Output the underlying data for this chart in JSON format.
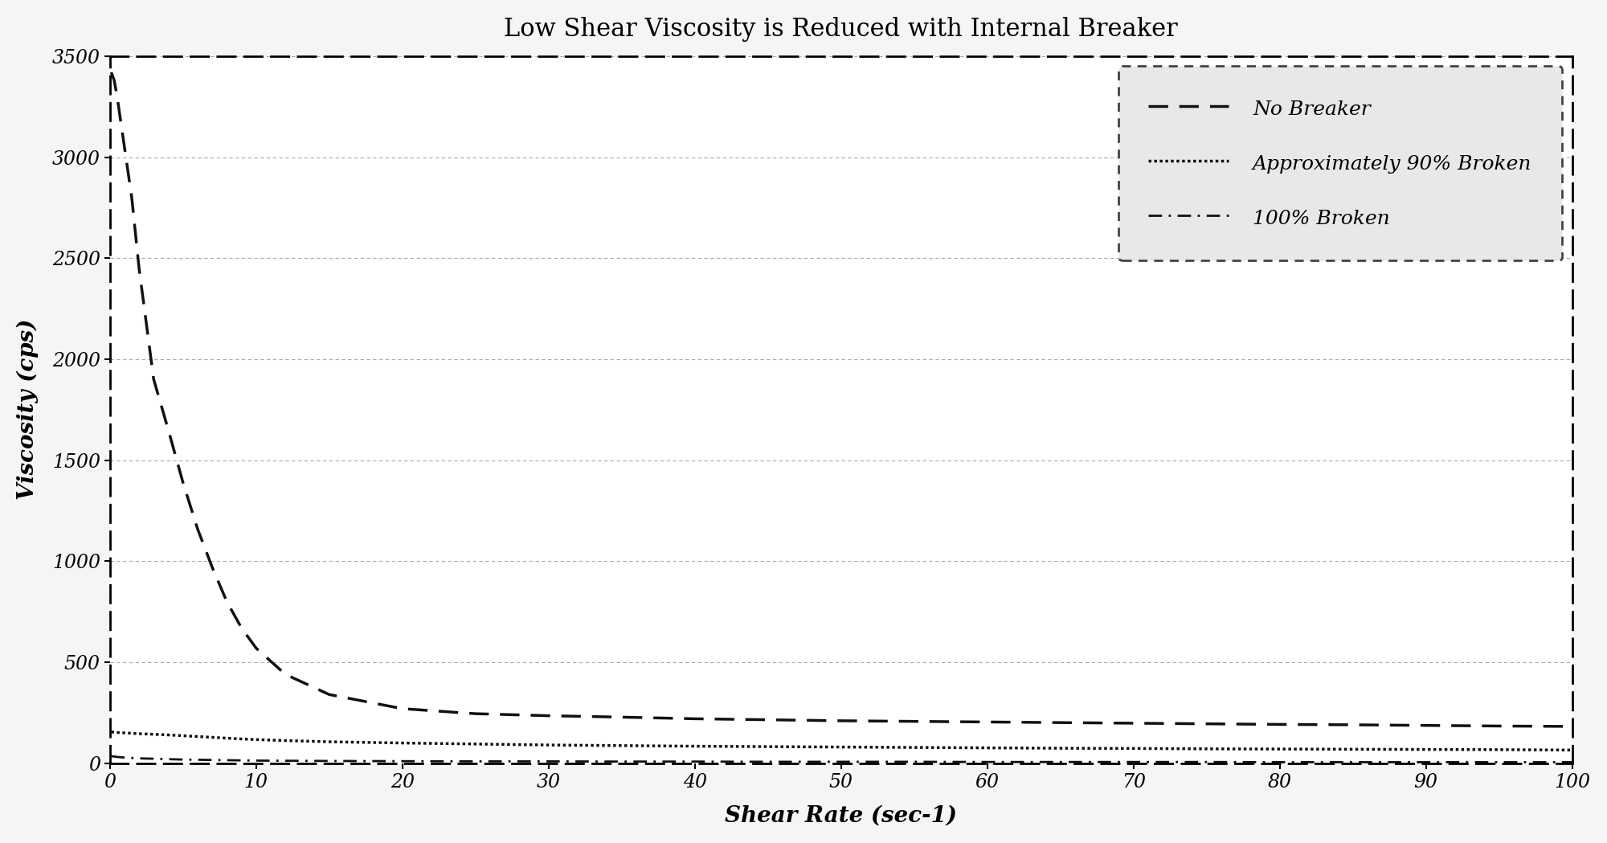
{
  "title": "Low Shear Viscosity is Reduced with Internal Breaker",
  "xlabel": "Shear Rate (sec-1)",
  "ylabel": "Viscosity (cps)",
  "xlim": [
    0,
    100
  ],
  "ylim": [
    0,
    3500
  ],
  "yticks": [
    0,
    500,
    1000,
    1500,
    2000,
    2500,
    3000,
    3500
  ],
  "xticks": [
    0,
    10,
    20,
    30,
    40,
    50,
    60,
    70,
    80,
    90,
    100
  ],
  "background_color": "#f5f5f5",
  "plot_bg": "#ffffff",
  "legend_bg": "#e8e8e8",
  "series": [
    {
      "label": "No Breaker",
      "linestyle": "dashed",
      "linewidth": 2.5,
      "x": [
        0.1,
        0.3,
        0.5,
        1,
        1.5,
        2,
        3,
        4,
        5,
        6,
        7,
        8,
        9,
        10,
        12,
        15,
        20,
        25,
        30,
        35,
        40,
        45,
        50,
        55,
        60,
        65,
        70,
        75,
        80,
        85,
        90,
        95,
        100
      ],
      "y": [
        3420,
        3380,
        3300,
        3050,
        2800,
        2450,
        1900,
        1650,
        1390,
        1160,
        970,
        800,
        670,
        570,
        440,
        340,
        270,
        245,
        235,
        228,
        220,
        215,
        210,
        207,
        204,
        201,
        198,
        195,
        192,
        190,
        187,
        184,
        182
      ]
    },
    {
      "label": "Approximately 90% Broken",
      "linestyle": "densely_dotted",
      "linewidth": 2.5,
      "x": [
        0.1,
        0.3,
        0.5,
        1,
        1.5,
        2,
        3,
        4,
        5,
        6,
        7,
        8,
        9,
        10,
        12,
        15,
        20,
        25,
        30,
        35,
        40,
        45,
        50,
        55,
        60,
        65,
        70,
        75,
        80,
        85,
        90,
        95,
        100
      ],
      "y": [
        155,
        153,
        152,
        150,
        148,
        146,
        143,
        140,
        136,
        132,
        128,
        124,
        120,
        117,
        112,
        106,
        100,
        95,
        90,
        87,
        84,
        82,
        80,
        78,
        76,
        74,
        73,
        71,
        70,
        69,
        68,
        67,
        65
      ]
    },
    {
      "label": "100% Broken",
      "linestyle": "dash_dot",
      "linewidth": 2.0,
      "x": [
        0.1,
        0.3,
        0.5,
        1,
        1.5,
        2,
        3,
        4,
        5,
        6,
        7,
        8,
        9,
        10,
        12,
        15,
        20,
        25,
        30,
        35,
        40,
        45,
        50,
        55,
        60,
        65,
        70,
        75,
        80,
        85,
        90,
        95,
        100
      ],
      "y": [
        35,
        33,
        31,
        28,
        26,
        24,
        22,
        20,
        18,
        17,
        16,
        15,
        14,
        13,
        12,
        11,
        10,
        9,
        9,
        8,
        8,
        7,
        7,
        7,
        6,
        6,
        6,
        6,
        5,
        5,
        5,
        5,
        5
      ]
    }
  ],
  "title_fontsize": 22,
  "axis_label_fontsize": 20,
  "tick_fontsize": 17,
  "legend_fontsize": 18
}
